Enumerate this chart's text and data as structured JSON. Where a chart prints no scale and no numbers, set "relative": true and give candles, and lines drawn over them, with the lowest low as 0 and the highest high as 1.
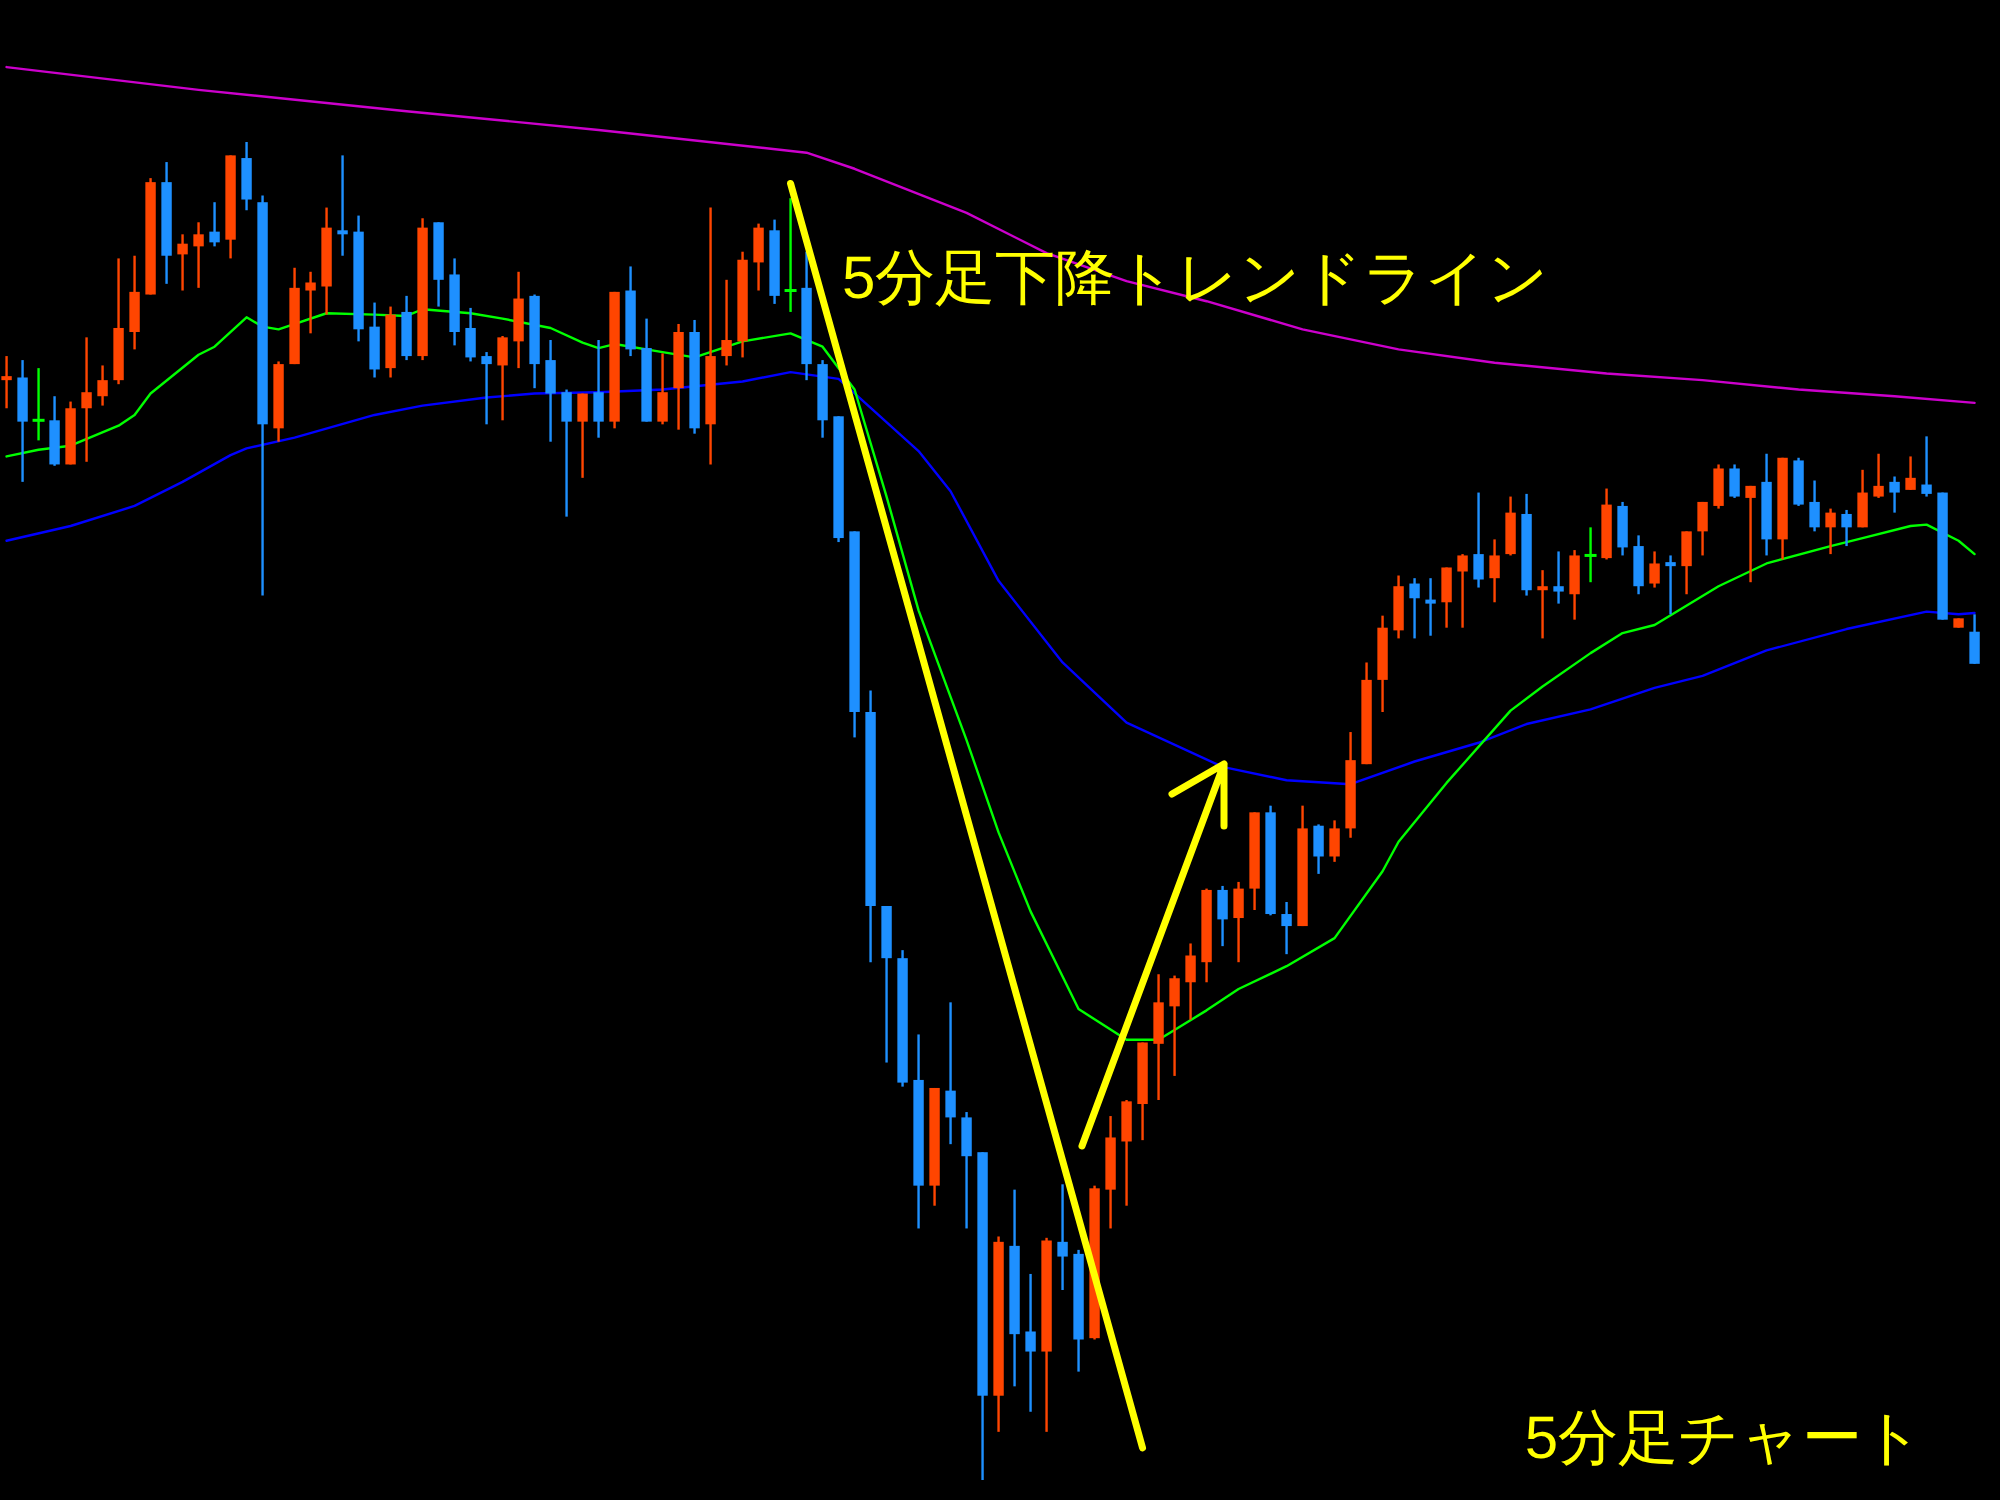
{
  "chart_data": {
    "type": "candlestick",
    "relative": true,
    "annotations": [
      "5分足下降トレンドライン",
      "5分足チャート"
    ],
    "categories": [
      null,
      null,
      null,
      null,
      null,
      null,
      null,
      null,
      null,
      null,
      null,
      null,
      null,
      null,
      null,
      null,
      null,
      null,
      null,
      null,
      null,
      null,
      null,
      null,
      null,
      null,
      null,
      null,
      null,
      null,
      null,
      null,
      null,
      null,
      null,
      null,
      null,
      null,
      null,
      null,
      null,
      null,
      null,
      null,
      null,
      null,
      null,
      null,
      null,
      null,
      null,
      null,
      null,
      null,
      null,
      null,
      null,
      null,
      null,
      null,
      null,
      null,
      null,
      null,
      null,
      null,
      null,
      null,
      null,
      null,
      null,
      null,
      null,
      null,
      null,
      null,
      null,
      null,
      null,
      null,
      null,
      null,
      null,
      null,
      null,
      null,
      null,
      null,
      null,
      null,
      null,
      null,
      null,
      null,
      null,
      null,
      null,
      null,
      null,
      null,
      null,
      null,
      null,
      null,
      null,
      null,
      null,
      null,
      null,
      null,
      null,
      null,
      null,
      null,
      null,
      null,
      null,
      null,
      null,
      null,
      null,
      null,
      null,
      null
    ],
    "ohlc": [
      [
        0.822,
        0.84,
        0.801,
        0.825
      ],
      [
        0.824,
        0.837,
        0.746,
        0.791
      ],
      [
        0.792,
        0.831,
        0.777,
        0.792
      ],
      [
        0.792,
        0.81,
        0.758,
        0.759
      ],
      [
        0.759,
        0.806,
        0.759,
        0.801
      ],
      [
        0.801,
        0.854,
        0.761,
        0.813
      ],
      [
        0.81,
        0.833,
        0.803,
        0.822
      ],
      [
        0.822,
        0.913,
        0.819,
        0.861
      ],
      [
        0.858,
        0.915,
        0.845,
        0.888
      ],
      [
        0.886,
        0.973,
        0.886,
        0.97
      ],
      [
        0.97,
        0.985,
        0.894,
        0.915
      ],
      [
        0.916,
        0.931,
        0.889,
        0.924
      ],
      [
        0.922,
        0.94,
        0.891,
        0.931
      ],
      [
        0.933,
        0.955,
        0.922,
        0.925
      ],
      [
        0.927,
        0.99,
        0.913,
        0.99
      ],
      [
        0.988,
        1.0,
        0.949,
        0.957
      ],
      [
        0.955,
        0.96,
        0.661,
        0.789
      ],
      [
        0.786,
        0.836,
        0.776,
        0.834
      ],
      [
        0.834,
        0.906,
        0.834,
        0.891
      ],
      [
        0.889,
        0.903,
        0.857,
        0.895
      ],
      [
        0.892,
        0.951,
        0.871,
        0.936
      ],
      [
        0.934,
        0.99,
        0.915,
        0.931
      ],
      [
        0.933,
        0.945,
        0.851,
        0.86
      ],
      [
        0.862,
        0.88,
        0.824,
        0.83
      ],
      [
        0.831,
        0.877,
        0.824,
        0.871
      ],
      [
        0.873,
        0.885,
        0.837,
        0.84
      ],
      [
        0.84,
        0.943,
        0.837,
        0.936
      ],
      [
        0.94,
        0.94,
        0.877,
        0.897
      ],
      [
        0.901,
        0.913,
        0.848,
        0.858
      ],
      [
        0.861,
        0.876,
        0.836,
        0.839
      ],
      [
        0.84,
        0.843,
        0.789,
        0.834
      ],
      [
        0.833,
        0.855,
        0.792,
        0.854
      ],
      [
        0.851,
        0.903,
        0.831,
        0.883
      ],
      [
        0.885,
        0.886,
        0.816,
        0.834
      ],
      [
        0.837,
        0.852,
        0.776,
        0.812
      ],
      [
        0.813,
        0.815,
        0.72,
        0.791
      ],
      [
        0.791,
        0.812,
        0.749,
        0.812
      ],
      [
        0.813,
        0.852,
        0.779,
        0.791
      ],
      [
        0.791,
        0.888,
        0.786,
        0.888
      ],
      [
        0.889,
        0.907,
        0.84,
        0.845
      ],
      [
        0.846,
        0.868,
        0.791,
        0.791
      ],
      [
        0.791,
        0.842,
        0.789,
        0.813
      ],
      [
        0.816,
        0.864,
        0.785,
        0.858
      ],
      [
        0.858,
        0.867,
        0.782,
        0.786
      ],
      [
        0.789,
        0.951,
        0.759,
        0.84
      ],
      [
        0.84,
        0.897,
        0.833,
        0.852
      ],
      [
        0.851,
        0.918,
        0.839,
        0.912
      ],
      [
        0.91,
        0.939,
        0.889,
        0.936
      ],
      [
        0.934,
        0.942,
        0.879,
        0.885
      ],
      [
        0.889,
        0.958,
        0.873,
        0.889
      ],
      [
        0.891,
        0.918,
        0.822,
        0.834
      ],
      [
        0.834,
        0.837,
        0.779,
        0.792
      ],
      [
        0.795,
        0.795,
        0.701,
        0.704
      ],
      [
        0.709,
        0.709,
        0.555,
        0.574
      ],
      [
        0.574,
        0.59,
        0.387,
        0.429
      ],
      [
        0.429,
        0.429,
        0.312,
        0.39
      ],
      [
        0.39,
        0.396,
        0.294,
        0.297
      ],
      [
        0.299,
        0.333,
        0.188,
        0.22
      ],
      [
        0.22,
        0.293,
        0.205,
        0.293
      ],
      [
        0.291,
        0.357,
        0.251,
        0.271
      ],
      [
        0.271,
        0.275,
        0.188,
        0.242
      ],
      [
        0.245,
        0.245,
        0.0,
        0.063
      ],
      [
        0.063,
        0.182,
        0.036,
        0.178
      ],
      [
        0.175,
        0.217,
        0.07,
        0.109
      ],
      [
        0.111,
        0.154,
        0.051,
        0.096
      ],
      [
        0.096,
        0.181,
        0.036,
        0.179
      ],
      [
        0.178,
        0.221,
        0.142,
        0.167
      ],
      [
        0.169,
        0.172,
        0.081,
        0.105
      ],
      [
        0.106,
        0.22,
        0.105,
        0.218
      ],
      [
        0.217,
        0.272,
        0.188,
        0.256
      ],
      [
        0.253,
        0.284,
        0.205,
        0.283
      ],
      [
        0.281,
        0.327,
        0.254,
        0.327
      ],
      [
        0.326,
        0.378,
        0.284,
        0.357
      ],
      [
        0.354,
        0.377,
        0.302,
        0.375
      ],
      [
        0.372,
        0.401,
        0.344,
        0.392
      ],
      [
        0.387,
        0.442,
        0.372,
        0.441
      ],
      [
        0.441,
        0.444,
        0.399,
        0.419
      ],
      [
        0.42,
        0.447,
        0.387,
        0.442
      ],
      [
        0.442,
        0.499,
        0.426,
        0.499
      ],
      [
        0.499,
        0.504,
        0.422,
        0.423
      ],
      [
        0.423,
        0.432,
        0.393,
        0.414
      ],
      [
        0.414,
        0.504,
        0.414,
        0.487
      ],
      [
        0.489,
        0.49,
        0.453,
        0.466
      ],
      [
        0.466,
        0.493,
        0.462,
        0.487
      ],
      [
        0.487,
        0.559,
        0.48,
        0.538
      ],
      [
        0.535,
        0.611,
        0.535,
        0.598
      ],
      [
        0.598,
        0.646,
        0.574,
        0.637
      ],
      [
        0.635,
        0.676,
        0.629,
        0.668
      ],
      [
        0.67,
        0.674,
        0.629,
        0.659
      ],
      [
        0.658,
        0.674,
        0.631,
        0.655
      ],
      [
        0.656,
        0.682,
        0.637,
        0.682
      ],
      [
        0.679,
        0.692,
        0.637,
        0.691
      ],
      [
        0.692,
        0.738,
        0.667,
        0.673
      ],
      [
        0.674,
        0.703,
        0.656,
        0.691
      ],
      [
        0.692,
        0.735,
        0.691,
        0.723
      ],
      [
        0.722,
        0.737,
        0.661,
        0.665
      ],
      [
        0.665,
        0.68,
        0.629,
        0.668
      ],
      [
        0.668,
        0.694,
        0.655,
        0.664
      ],
      [
        0.662,
        0.695,
        0.643,
        0.691
      ],
      [
        0.691,
        0.712,
        0.671,
        0.691
      ],
      [
        0.689,
        0.741,
        0.688,
        0.729
      ],
      [
        0.728,
        0.731,
        0.691,
        0.697
      ],
      [
        0.698,
        0.706,
        0.662,
        0.668
      ],
      [
        0.67,
        0.694,
        0.667,
        0.685
      ],
      [
        0.686,
        0.691,
        0.647,
        0.683
      ],
      [
        0.683,
        0.709,
        0.662,
        0.709
      ],
      [
        0.709,
        0.731,
        0.691,
        0.731
      ],
      [
        0.728,
        0.759,
        0.726,
        0.756
      ],
      [
        0.756,
        0.759,
        0.734,
        0.735
      ],
      [
        0.734,
        0.743,
        0.671,
        0.743
      ],
      [
        0.746,
        0.767,
        0.691,
        0.703
      ],
      [
        0.703,
        0.764,
        0.688,
        0.764
      ],
      [
        0.762,
        0.764,
        0.728,
        0.729
      ],
      [
        0.731,
        0.747,
        0.709,
        0.712
      ],
      [
        0.712,
        0.726,
        0.692,
        0.723
      ],
      [
        0.722,
        0.725,
        0.698,
        0.712
      ],
      [
        0.712,
        0.755,
        0.712,
        0.738
      ],
      [
        0.735,
        0.767,
        0.734,
        0.743
      ],
      [
        0.746,
        0.75,
        0.723,
        0.738
      ],
      [
        0.74,
        0.765,
        0.74,
        0.749
      ],
      [
        0.744,
        0.78,
        0.735,
        0.737
      ],
      [
        0.738,
        0.738,
        0.643,
        0.643
      ],
      [
        0.637,
        0.644,
        0.637,
        0.644
      ],
      [
        0.634,
        0.647,
        0.61,
        0.61
      ]
    ],
    "colors": [
      "#ff4500",
      "#1e90ff",
      "#00ff00",
      "#1e90ff",
      "#ff4500",
      "#ff4500",
      "#ff4500",
      "#ff4500",
      "#ff4500",
      "#ff4500",
      "#1e90ff",
      "#ff4500",
      "#ff4500",
      "#1e90ff",
      "#ff4500",
      "#1e90ff",
      "#1e90ff",
      "#ff4500",
      "#ff4500",
      "#ff4500",
      "#ff4500",
      "#1e90ff",
      "#1e90ff",
      "#1e90ff",
      "#ff4500",
      "#1e90ff",
      "#ff4500",
      "#1e90ff",
      "#1e90ff",
      "#1e90ff",
      "#1e90ff",
      "#ff4500",
      "#ff4500",
      "#1e90ff",
      "#1e90ff",
      "#1e90ff",
      "#ff4500",
      "#1e90ff",
      "#ff4500",
      "#1e90ff",
      "#1e90ff",
      "#ff4500",
      "#ff4500",
      "#1e90ff",
      "#ff4500",
      "#ff4500",
      "#ff4500",
      "#ff4500",
      "#1e90ff",
      "#00ff00",
      "#1e90ff",
      "#1e90ff",
      "#1e90ff",
      "#1e90ff",
      "#1e90ff",
      "#1e90ff",
      "#1e90ff",
      "#1e90ff",
      "#ff4500",
      "#1e90ff",
      "#1e90ff",
      "#1e90ff",
      "#ff4500",
      "#1e90ff",
      "#1e90ff",
      "#ff4500",
      "#1e90ff",
      "#1e90ff",
      "#ff4500",
      "#ff4500",
      "#ff4500",
      "#ff4500",
      "#ff4500",
      "#ff4500",
      "#ff4500",
      "#ff4500",
      "#1e90ff",
      "#ff4500",
      "#ff4500",
      "#1e90ff",
      "#1e90ff",
      "#ff4500",
      "#1e90ff",
      "#ff4500",
      "#ff4500",
      "#ff4500",
      "#ff4500",
      "#ff4500",
      "#1e90ff",
      "#1e90ff",
      "#ff4500",
      "#ff4500",
      "#1e90ff",
      "#ff4500",
      "#ff4500",
      "#1e90ff",
      "#ff4500",
      "#1e90ff",
      "#ff4500",
      "#00ff00",
      "#ff4500",
      "#1e90ff",
      "#1e90ff",
      "#ff4500",
      "#1e90ff",
      "#ff4500",
      "#ff4500",
      "#ff4500",
      "#1e90ff",
      "#ff4500",
      "#1e90ff",
      "#ff4500",
      "#1e90ff",
      "#1e90ff",
      "#ff4500",
      "#1e90ff",
      "#ff4500",
      "#ff4500",
      "#1e90ff",
      "#ff4500",
      "#1e90ff",
      "#1e90ff",
      "#ff4500",
      "#1e90ff"
    ],
    "series": [
      {
        "type": "line",
        "color": "#cc00cc",
        "values": [
          1.056,
          null,
          null,
          null,
          null,
          null,
          null,
          null,
          null,
          null,
          null,
          null,
          1.039,
          null,
          null,
          null,
          null,
          null,
          null,
          null,
          null,
          null,
          null,
          null,
          null,
          1.023,
          null,
          null,
          null,
          null,
          null,
          null,
          null,
          null,
          null,
          null,
          null,
          1.009,
          null,
          null,
          null,
          null,
          null,
          null,
          null,
          null,
          null,
          null,
          null,
          null,
          0.992,
          null,
          null,
          0.98,
          null,
          null,
          null,
          null,
          null,
          null,
          0.947,
          null,
          null,
          null,
          null,
          0.917,
          null,
          null,
          null,
          null,
          0.896,
          null,
          null,
          null,
          null,
          0.881,
          null,
          null,
          null,
          null,
          null,
          0.86,
          null,
          null,
          null,
          null,
          null,
          0.845,
          null,
          null,
          null,
          null,
          null,
          0.835,
          null,
          null,
          null,
          null,
          null,
          null,
          0.827,
          null,
          null,
          null,
          null,
          null,
          0.822,
          null,
          null,
          null,
          null,
          null,
          0.815,
          null,
          null,
          null,
          null,
          null,
          0.81,
          null,
          null,
          null,
          null,
          0.805
        ]
      },
      {
        "type": "line",
        "color": "#0000ff",
        "values": [
          0.702,
          null,
          null,
          null,
          0.713,
          null,
          null,
          null,
          0.728,
          null,
          null,
          0.746,
          null,
          null,
          0.766,
          0.771,
          null,
          null,
          0.779,
          null,
          null,
          null,
          null,
          0.796,
          null,
          null,
          0.803,
          null,
          null,
          null,
          0.809,
          null,
          null,
          0.812,
          null,
          null,
          null,
          0.813,
          null,
          null,
          null,
          0.815,
          null,
          null,
          null,
          null,
          0.821,
          null,
          null,
          0.828,
          null,
          null,
          0.823,
          null,
          null,
          null,
          null,
          0.769,
          null,
          0.739,
          null,
          null,
          0.672,
          null,
          null,
          null,
          0.611,
          null,
          null,
          null,
          0.566,
          null,
          null,
          null,
          null,
          null,
          0.533,
          null,
          null,
          null,
          0.523,
          null,
          null,
          null,
          0.52,
          null,
          null,
          null,
          0.537,
          null,
          null,
          null,
          0.551,
          null,
          null,
          0.565,
          null,
          null,
          null,
          0.576,
          null,
          null,
          null,
          0.592,
          null,
          null,
          0.601,
          null,
          null,
          null,
          0.62,
          null,
          null,
          null,
          null,
          0.636,
          null,
          null,
          null,
          null,
          0.649,
          null,
          0.647,
          0.648
        ]
      },
      {
        "type": "line",
        "color": "#00ff00",
        "values": [
          0.765,
          null,
          0.77,
          null,
          0.773,
          null,
          null,
          0.788,
          0.796,
          0.812,
          null,
          null,
          0.841,
          0.847,
          null,
          0.869,
          0.862,
          0.86,
          null,
          null,
          0.872,
          null,
          null,
          0.871,
          null,
          0.87,
          0.875,
          null,
          null,
          0.872,
          null,
          0.868,
          null,
          null,
          0.861,
          null,
          0.85,
          0.846,
          0.849,
          null,
          null,
          0.843,
          null,
          0.839,
          null,
          null,
          0.851,
          null,
          null,
          0.857,
          null,
          0.847,
          null,
          0.815,
          null,
          0.735,
          null,
          0.65,
          null,
          null,
          0.553,
          null,
          0.484,
          null,
          0.425,
          null,
          null,
          0.352,
          null,
          null,
          0.329,
          null,
          0.329,
          null,
          null,
          0.351,
          null,
          0.367,
          null,
          null,
          0.384,
          null,
          null,
          0.405,
          null,
          null,
          0.455,
          0.477,
          null,
          null,
          0.521,
          null,
          null,
          null,
          0.575,
          null,
          0.593,
          null,
          null,
          0.618,
          null,
          0.633,
          null,
          0.639,
          null,
          null,
          null,
          0.668,
          null,
          null,
          0.685,
          null,
          null,
          null,
          0.698,
          null,
          0.704,
          null,
          null,
          0.713,
          0.714,
          null,
          0.702,
          0.692
        ]
      },
      {
        "type": "line",
        "color": "#ffff00",
        "values": [
          null,
          null,
          null,
          null,
          null,
          null,
          null,
          null,
          null,
          null,
          null,
          null,
          null,
          null,
          null,
          null,
          null,
          null,
          null,
          null,
          null,
          null,
          null,
          null,
          null,
          null,
          null,
          null,
          null,
          null,
          null,
          null,
          null,
          null,
          null,
          null,
          null,
          null,
          null,
          null,
          null,
          null,
          null,
          null,
          null,
          null,
          null,
          null,
          null,
          0.969,
          null,
          null,
          null,
          null,
          null,
          null,
          null,
          null,
          null,
          null,
          null,
          null,
          null,
          null,
          null,
          null,
          null,
          null,
          null,
          null,
          null,
          0.024,
          null,
          null,
          null,
          null,
          null,
          null,
          null,
          null,
          null,
          null,
          null,
          null,
          null,
          null,
          null,
          null,
          null,
          null,
          null,
          null,
          null,
          null,
          null,
          null,
          null,
          null,
          null,
          null,
          null,
          null,
          null,
          null,
          null,
          null,
          null,
          null,
          null,
          null,
          null,
          null,
          null,
          null,
          null,
          null,
          null,
          null,
          null,
          null,
          null,
          null,
          null,
          null
        ]
      }
    ]
  }
}
